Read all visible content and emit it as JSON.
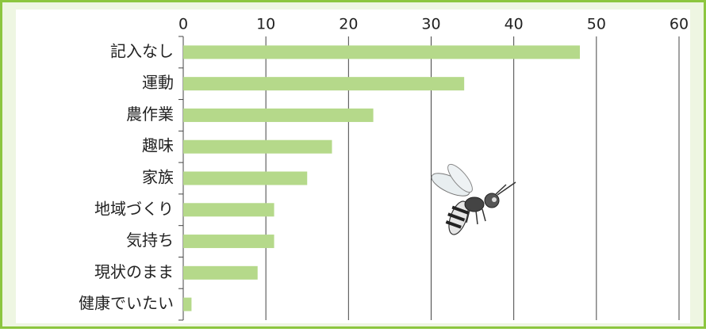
{
  "chart_data": {
    "type": "bar",
    "orientation": "horizontal",
    "categories": [
      "記入なし",
      "運動",
      "農作業",
      "趣味",
      "家族",
      "地域づくり",
      "気持ち",
      "現状のまま",
      "健康でいたい"
    ],
    "values": [
      48,
      34,
      23,
      18,
      15,
      11,
      11,
      9,
      1
    ],
    "color": "#b5d98a",
    "xlim": [
      0,
      60
    ],
    "xticks": [
      0,
      10,
      20,
      30,
      40,
      50,
      60
    ],
    "grid": true
  }
}
